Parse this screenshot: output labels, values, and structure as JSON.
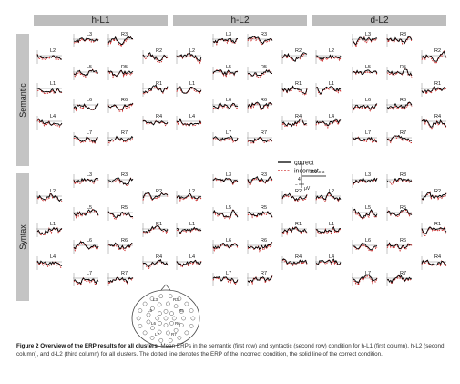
{
  "figure": {
    "columns": [
      "h-L1",
      "h-L2",
      "d-L2"
    ],
    "rows": [
      "Semantic",
      "Syntax"
    ],
    "legend": {
      "correct": "correct",
      "incorrect": "incorrect"
    },
    "scale": {
      "time": "500 ms",
      "amplitude": "μV",
      "tick_plus": "+",
      "tick_minus": "−",
      "tick_value": "4"
    },
    "cluster_labels": [
      "L2",
      "L3",
      "R3",
      "R2",
      "L5",
      "R5",
      "L1",
      "R1",
      "L6",
      "R6",
      "L4",
      "R4",
      "L7",
      "R7"
    ],
    "colors": {
      "correct": "#000000",
      "incorrect": "#cc2222",
      "header_bg": "#bdbdbd"
    }
  },
  "caption": {
    "label": "Figure 2",
    "title": "Overview of the ERP results for all clusters",
    "text": ". Mean ERPs in the semantic (first row) and syntactic (second row) condition for h-L1 (first column), h-L2 (second column), and d-L2 (third column) for all clusters. The dotted line denotes the ERP of the incorrect condition, the solid line of the correct condition."
  }
}
